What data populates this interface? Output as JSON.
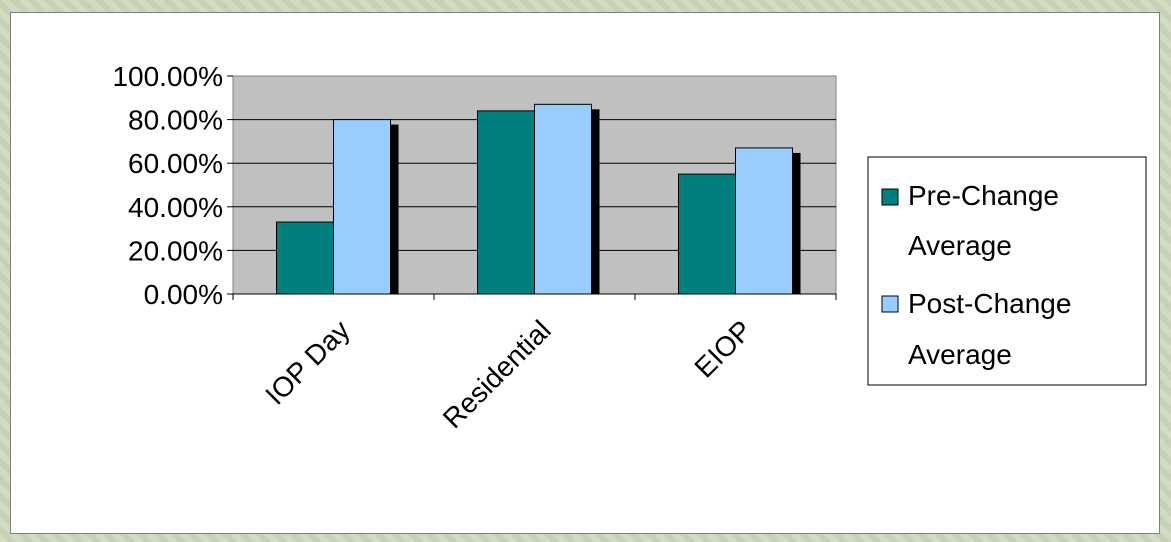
{
  "chart_data": {
    "type": "bar",
    "categories": [
      "IOP Day",
      "Residential",
      "EIOP"
    ],
    "series": [
      {
        "name": "Pre-Change Average",
        "values": [
          33,
          84,
          55
        ],
        "color": "#007f7f"
      },
      {
        "name": "Post-Change Average",
        "values": [
          80,
          87,
          67
        ],
        "color": "#99ccff"
      }
    ],
    "y_ticks": [
      "0.00%",
      "20.00%",
      "40.00%",
      "60.00%",
      "80.00%",
      "100.00%"
    ],
    "ylim": [
      0,
      100
    ],
    "plot_background": "#c0c0c0",
    "gridlines": true,
    "legend_position": "right",
    "legend_labels": [
      [
        "Pre-Change",
        "Average"
      ],
      [
        "Post-Change",
        "Average"
      ]
    ]
  }
}
